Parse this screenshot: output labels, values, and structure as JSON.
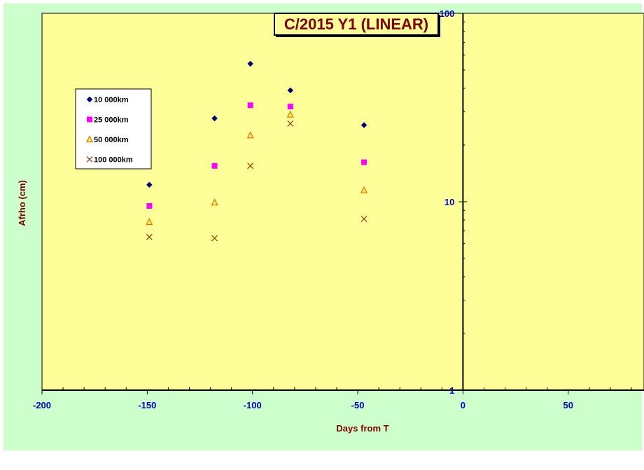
{
  "colors": {
    "outer_bg": "#ccffcc",
    "plot_bg": "#ffff99",
    "axis_color": "#000000",
    "tick_label_color": "#0000cc",
    "axis_title_color": "#800000",
    "title_color": "#800000"
  },
  "chart_data": {
    "type": "scatter",
    "title": "C/2015 Y1 (LINEAR)",
    "xlabel": "Days from  T",
    "ylabel": "Afrho (cm)",
    "xlim": [
      -200,
      86
    ],
    "ylim": [
      1,
      100
    ],
    "y_scale": "log",
    "grid": false,
    "legend_position": "top-left",
    "x_ticks": [
      "-200",
      "-150",
      "-100",
      "-50",
      "0",
      "50"
    ],
    "y_ticks": [
      "1",
      "10",
      "100"
    ],
    "series": [
      {
        "name": "10 000km",
        "marker": "diamond",
        "color": "#000080",
        "x": [
          -149,
          -118,
          -101,
          -82,
          -47
        ],
        "y": [
          12.3,
          27.7,
          54.0,
          39.0,
          25.5
        ]
      },
      {
        "name": "25 000km",
        "marker": "square",
        "color": "#ff00ff",
        "x": [
          -149,
          -118,
          -101,
          -82,
          -47
        ],
        "y": [
          9.5,
          15.5,
          32.5,
          32.0,
          16.2
        ]
      },
      {
        "name": "50 000km",
        "marker": "triangle",
        "color": "#ff6600",
        "x": [
          -149,
          -118,
          -101,
          -82,
          -47
        ],
        "y": [
          7.8,
          9.9,
          22.5,
          29.0,
          11.5
        ]
      },
      {
        "name": "100 000km",
        "marker": "x",
        "color": "#993300",
        "x": [
          -149,
          -118,
          -101,
          -82,
          -47
        ],
        "y": [
          6.5,
          6.4,
          15.5,
          26.0,
          8.1
        ]
      }
    ]
  }
}
